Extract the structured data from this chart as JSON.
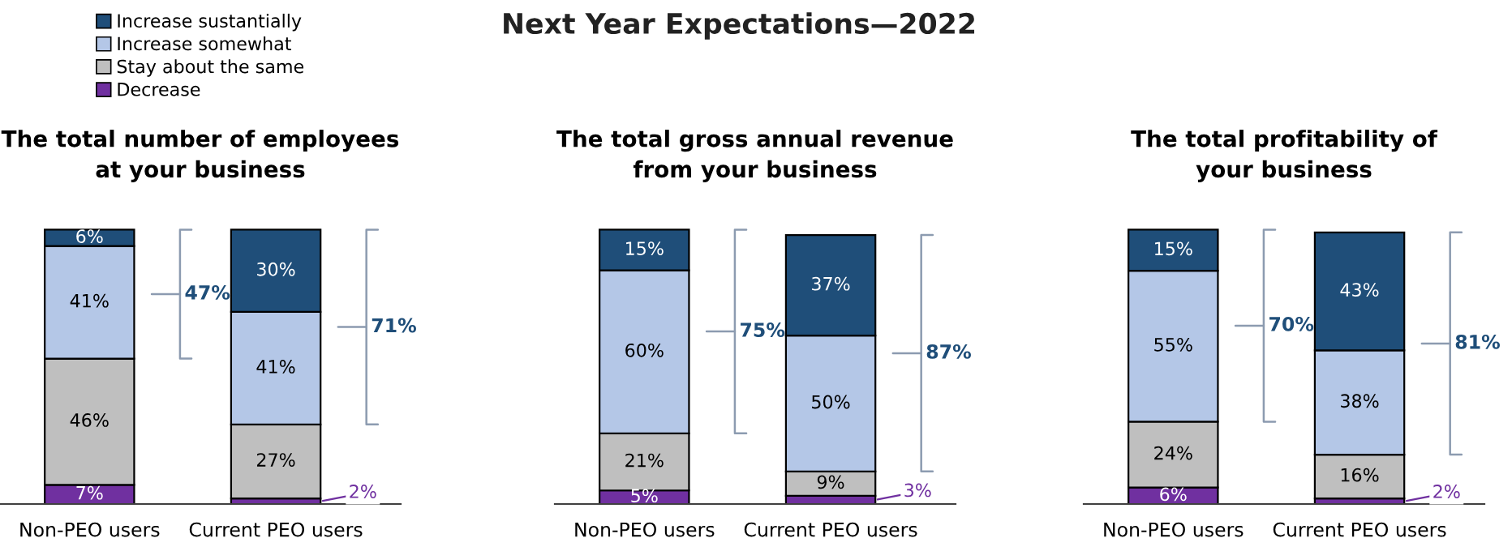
{
  "chart_data": [
    {
      "type": "bar",
      "stacked": true,
      "title": "The total number of employees\nat your business",
      "categories": [
        "Non-PEO users",
        "Current PEO users"
      ],
      "tick_labels": "x",
      "legend": "top",
      "grid": false,
      "series": [
        {
          "name": "Decrease",
          "color": "#7030a0",
          "values": [
            7,
            2
          ],
          "value_labels": [
            "7%",
            "2%"
          ]
        },
        {
          "name": "Stay about the same",
          "color": "#bfbfbf",
          "values": [
            46,
            27
          ],
          "value_labels": [
            "46%",
            "27%"
          ]
        },
        {
          "name": "Increase somewhat",
          "color": "#b4c7e7",
          "values": [
            41,
            41
          ],
          "value_labels": [
            "41%",
            "41%"
          ]
        },
        {
          "name": "Increase sustantially",
          "color": "#1f4e79",
          "values": [
            6,
            30
          ],
          "value_labels": [
            "6%",
            "30%"
          ]
        }
      ],
      "annotations": [
        "47%",
        "71%"
      ]
    },
    {
      "type": "bar",
      "stacked": true,
      "title": "The total gross annual revenue\nfrom your business",
      "subtitle": "Next Year Expectations—2022",
      "categories": [
        "Non-PEO users",
        "Current PEO users"
      ],
      "tick_labels": "x",
      "grid": false,
      "series": [
        {
          "color": "#7030a0",
          "values": [
            5,
            3
          ],
          "value_labels": [
            "5%",
            "3%"
          ]
        },
        {
          "color": "#bfbfbf",
          "values": [
            21,
            9
          ],
          "value_labels": [
            "21%",
            "9%"
          ]
        },
        {
          "color": "#b4c7e7",
          "values": [
            60,
            50
          ],
          "value_labels": [
            "60%",
            "50%"
          ]
        },
        {
          "color": "#1f4e79",
          "values": [
            15,
            37
          ],
          "value_labels": [
            "15%",
            "37%"
          ]
        }
      ],
      "annotations": [
        "75%",
        "87%"
      ]
    },
    {
      "type": "bar",
      "stacked": true,
      "title": "The total profitability of\nyour business",
      "categories": [
        "Non-PEO users",
        "Current PEO users"
      ],
      "tick_labels": "x",
      "grid": false,
      "series": [
        {
          "color": "#7030a0",
          "values": [
            6,
            2
          ],
          "value_labels": [
            "6%",
            "2%"
          ]
        },
        {
          "color": "#bfbfbf",
          "values": [
            24,
            16
          ],
          "value_labels": [
            "24%",
            "16%"
          ]
        },
        {
          "color": "#b4c7e7",
          "values": [
            55,
            38
          ],
          "value_labels": [
            "55%",
            "38%"
          ]
        },
        {
          "color": "#1f4e79",
          "values": [
            15,
            43
          ],
          "value_labels": [
            "15%",
            "43%"
          ]
        }
      ],
      "annotations": [
        "70%",
        "81%"
      ]
    }
  ]
}
